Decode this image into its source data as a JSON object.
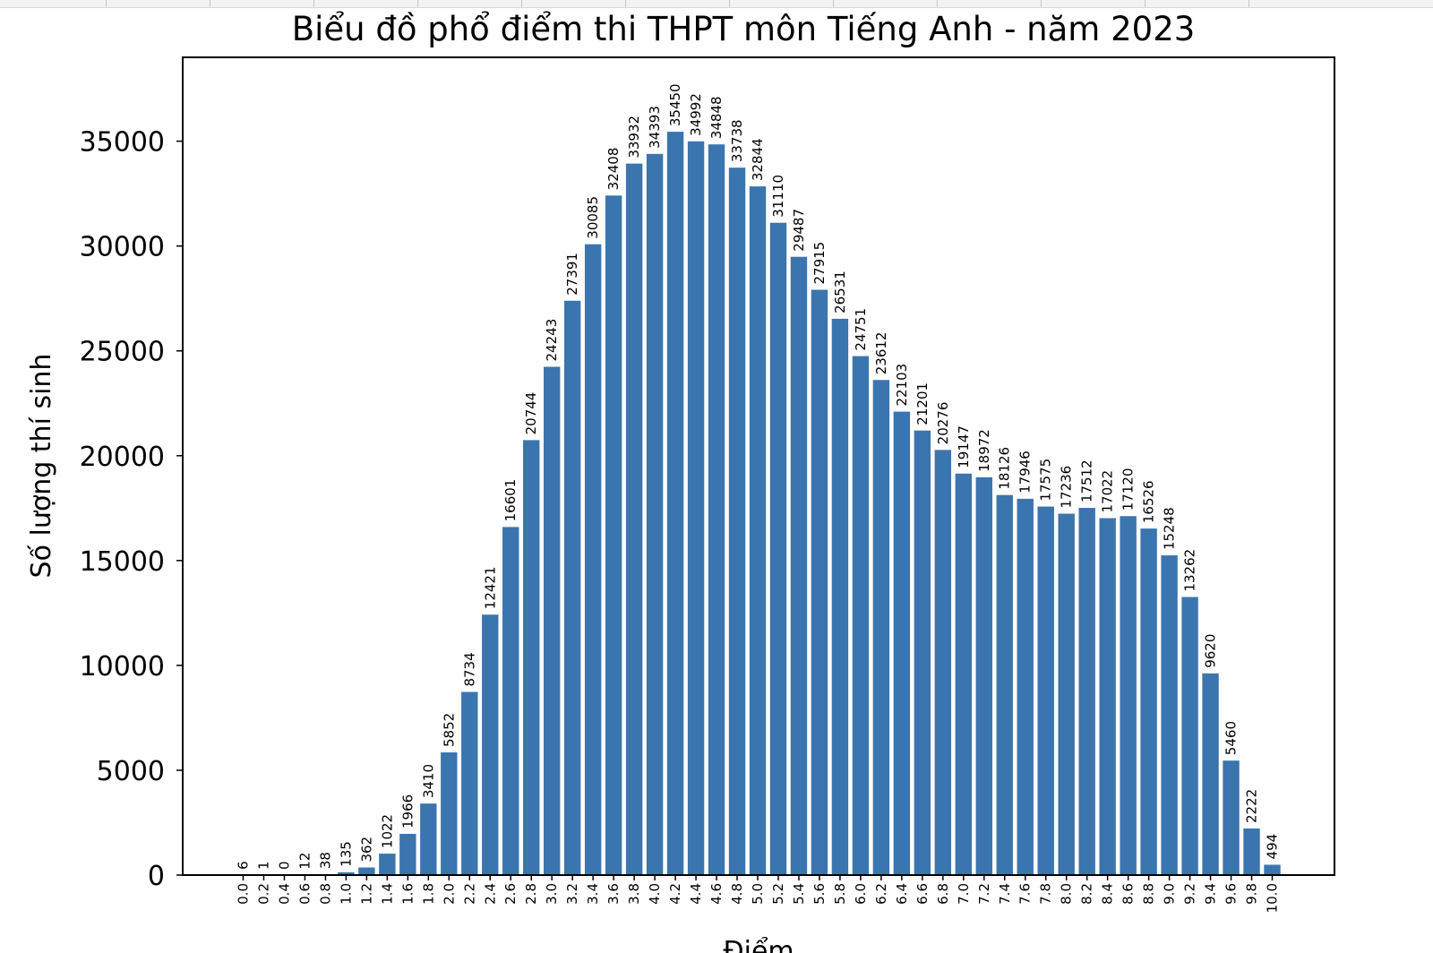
{
  "chart_data": {
    "type": "bar",
    "title": "Biểu đồ phổ điểm thi THPT môn Tiếng Anh - năm 2023",
    "xlabel": "Điểm",
    "ylabel": "Số lượng thí sinh",
    "categories": [
      "0.0",
      "0.2",
      "0.4",
      "0.6",
      "0.8",
      "1.0",
      "1.2",
      "1.4",
      "1.6",
      "1.8",
      "2.0",
      "2.2",
      "2.4",
      "2.6",
      "2.8",
      "3.0",
      "3.2",
      "3.4",
      "3.6",
      "3.8",
      "4.0",
      "4.2",
      "4.4",
      "4.6",
      "4.8",
      "5.0",
      "5.2",
      "5.4",
      "5.6",
      "5.8",
      "6.0",
      "6.2",
      "6.4",
      "6.6",
      "6.8",
      "7.0",
      "7.2",
      "7.4",
      "7.6",
      "7.8",
      "8.0",
      "8.2",
      "8.4",
      "8.6",
      "8.8",
      "9.0",
      "9.2",
      "9.4",
      "9.6",
      "9.8",
      "10.0"
    ],
    "values": [
      6,
      1,
      0,
      12,
      38,
      135,
      362,
      1022,
      1966,
      3410,
      5852,
      8734,
      12421,
      16601,
      20744,
      24243,
      27391,
      30085,
      32408,
      33932,
      34393,
      35450,
      34992,
      34848,
      33738,
      32844,
      31110,
      29487,
      27915,
      26531,
      24751,
      23612,
      22103,
      21201,
      20276,
      19147,
      18972,
      18126,
      17946,
      17575,
      17236,
      17512,
      17022,
      17120,
      16526,
      15248,
      13262,
      9620,
      5460,
      2222,
      494
    ],
    "yticks": [
      0,
      5000,
      10000,
      15000,
      20000,
      25000,
      30000,
      35000
    ],
    "ylim": [
      0,
      39000
    ],
    "bar_color": "#3b75af",
    "grid": false,
    "data_labels": true
  }
}
